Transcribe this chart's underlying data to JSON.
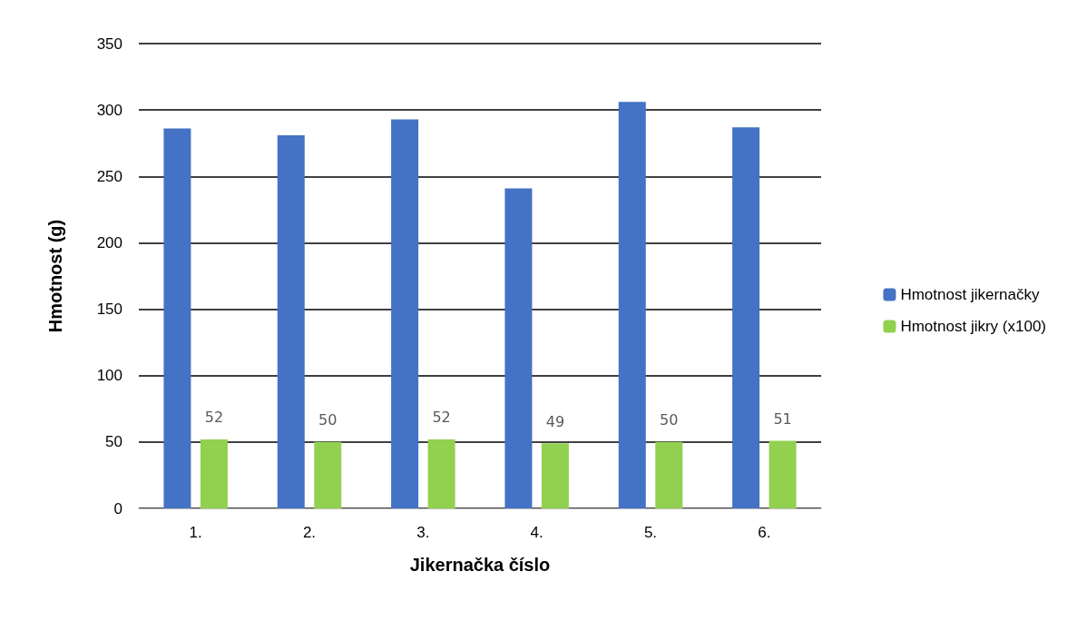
{
  "chart_data": {
    "type": "bar",
    "xlabel": "Jikernačka číslo",
    "ylabel": "Hmotnost (g)",
    "categories": [
      "1.",
      "2.",
      "3.",
      "4.",
      "5.",
      "6."
    ],
    "series": [
      {
        "name": "Hmotnost jikernačky",
        "color": "#4472c4",
        "values": [
          286,
          281,
          293,
          241,
          306,
          287
        ]
      },
      {
        "name": "Hmotnost jikry (x100)",
        "color": "#92d050",
        "values": [
          52,
          50,
          52,
          49,
          50,
          51
        ],
        "value_labels": [
          "52",
          "50",
          "52",
          "49",
          "50",
          "51"
        ]
      }
    ],
    "ylim": [
      0,
      350
    ],
    "yticks": [
      0,
      50,
      100,
      150,
      200,
      250,
      300,
      350
    ],
    "grid": "y",
    "legend": "right"
  }
}
